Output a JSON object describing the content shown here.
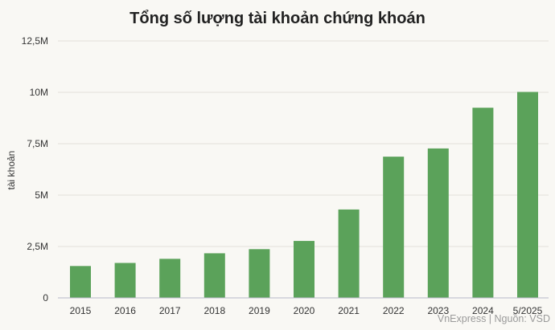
{
  "chart_data": {
    "type": "bar",
    "title": "Tổng số lượng tài khoản chứng khoán",
    "xlabel": "",
    "ylabel": "tài khoản",
    "categories": [
      "2015",
      "2016",
      "2017",
      "2018",
      "2019",
      "2020",
      "2021",
      "2022",
      "2023",
      "2024",
      "5/2025"
    ],
    "values": [
      1.55,
      1.7,
      1.9,
      2.17,
      2.37,
      2.77,
      4.3,
      6.87,
      7.27,
      9.25,
      10.02
    ],
    "value_unit": "M",
    "yticks": [
      "0",
      "2,5M",
      "5M",
      "7,5M",
      "10M",
      "12,5M"
    ],
    "ytick_values": [
      0,
      2.5,
      5,
      7.5,
      10,
      12.5
    ],
    "ylim": [
      0,
      12.5
    ],
    "grid": true,
    "legend": "none",
    "bar_color": "#5ba25a",
    "source": "VnExpress | Nguồn: VSD"
  }
}
